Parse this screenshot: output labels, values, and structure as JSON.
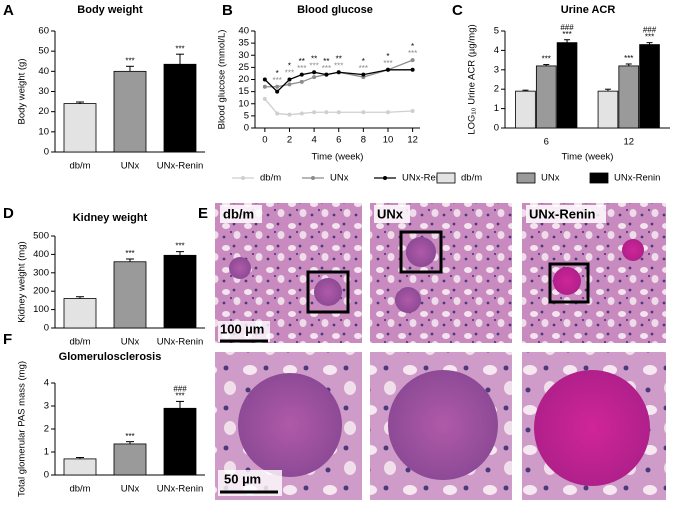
{
  "figure": {
    "panel_labels": [
      "A",
      "B",
      "C",
      "D",
      "E",
      "F"
    ],
    "images": {
      "labels": [
        "db/m",
        "UNx",
        "UNx-Renin"
      ],
      "scale_bars": [
        "100 µm",
        "50 µm"
      ]
    }
  },
  "chart_data": [
    {
      "type": "bar",
      "title": "Body weight",
      "ylabel": "Body weight (g)",
      "categories": [
        "db/m",
        "UNx",
        "UNx-Renin"
      ],
      "values": [
        24,
        40,
        43.5
      ],
      "errors": [
        0.8,
        2.5,
        5
      ],
      "annotations": [
        null,
        [
          "***"
        ],
        [
          "***"
        ]
      ],
      "colors": [
        "#e3e3e3",
        "#9a9a9a",
        "#000000"
      ],
      "ylim": [
        0,
        60
      ],
      "yticks": [
        0,
        10,
        20,
        30,
        40,
        50,
        60
      ]
    },
    {
      "type": "line",
      "title": "Blood glucose",
      "xlabel": "Time (week)",
      "ylabel": "Blood glucose (mmol/L)",
      "x": [
        0,
        1,
        2,
        3,
        4,
        5,
        6,
        8,
        10,
        12
      ],
      "xlim": [
        -0.8,
        12.6
      ],
      "xticks": [
        0,
        2,
        4,
        6,
        8,
        10,
        12
      ],
      "ylim": [
        0,
        40
      ],
      "yticks": [
        0,
        5,
        10,
        15,
        20,
        25,
        30,
        35,
        40
      ],
      "series": [
        {
          "name": "db/m",
          "color": "#cfcfcf",
          "values": [
            12,
            6,
            5.5,
            6,
            6.5,
            6.5,
            6.5,
            6.5,
            6.5,
            7
          ],
          "annotations": [
            null,
            null,
            null,
            null,
            null,
            null,
            null,
            null,
            null,
            null
          ]
        },
        {
          "name": "UNx",
          "color": "#8c8c8c",
          "values": [
            17,
            17,
            18,
            19,
            21,
            22,
            23,
            21,
            24,
            28
          ],
          "annotations": [
            null,
            "***",
            "***",
            "***",
            "***",
            "***",
            "***",
            "***",
            "***",
            "***"
          ]
        },
        {
          "name": "UNx-Renin",
          "color": "#000000",
          "values": [
            20,
            15,
            20,
            22,
            23,
            22,
            23,
            22,
            24,
            24
          ],
          "annotations": [
            null,
            "*",
            "*",
            "**",
            "**",
            "**",
            "**",
            "*",
            "*",
            "*"
          ]
        }
      ]
    },
    {
      "type": "grouped_bar",
      "title": "Urine ACR",
      "xlabel": "Time (week)",
      "ylabel": "LOG₁₀ Urine ACR (µg/mg)",
      "categories": [
        "6",
        "12"
      ],
      "ylim": [
        0,
        5
      ],
      "yticks": [
        0,
        1,
        2,
        3,
        4,
        5
      ],
      "series": [
        {
          "name": "db/m",
          "color": "#e3e3e3",
          "values": [
            1.9,
            1.9
          ],
          "errors": [
            0.05,
            0.1
          ],
          "annotations": [
            null,
            null
          ]
        },
        {
          "name": "UNx",
          "color": "#9a9a9a",
          "values": [
            3.2,
            3.2
          ],
          "errors": [
            0.07,
            0.1
          ],
          "annotations": [
            [
              "***"
            ],
            [
              "***"
            ]
          ]
        },
        {
          "name": "UNx-Renin",
          "color": "#000000",
          "values": [
            4.4,
            4.3
          ],
          "errors": [
            0.15,
            0.1
          ],
          "annotations": [
            [
              "###",
              "***"
            ],
            [
              "###",
              "***"
            ]
          ]
        }
      ]
    },
    {
      "type": "bar",
      "title": "Kidney weight",
      "ylabel": "Kidney weight (mg)",
      "categories": [
        "db/m",
        "UNx",
        "UNx-Renin"
      ],
      "values": [
        160,
        360,
        395
      ],
      "errors": [
        10,
        15,
        20
      ],
      "annotations": [
        null,
        [
          "***"
        ],
        [
          "***"
        ]
      ],
      "colors": [
        "#e3e3e3",
        "#9a9a9a",
        "#000000"
      ],
      "ylim": [
        0,
        500
      ],
      "yticks": [
        0,
        100,
        200,
        300,
        400,
        500
      ]
    },
    {
      "type": "bar",
      "title": "Glomerulosclerosis",
      "ylabel": "Total glomerular PAS mass (mg)",
      "categories": [
        "db/m",
        "UNx",
        "UNx-Renin"
      ],
      "values": [
        0.7,
        1.35,
        2.9
      ],
      "errors": [
        0.06,
        0.1,
        0.3
      ],
      "annotations": [
        null,
        [
          "***"
        ],
        [
          "###",
          "***"
        ]
      ],
      "colors": [
        "#e3e3e3",
        "#9a9a9a",
        "#000000"
      ],
      "ylim": [
        0,
        4
      ],
      "yticks": [
        0,
        1,
        2,
        3,
        4
      ]
    }
  ]
}
